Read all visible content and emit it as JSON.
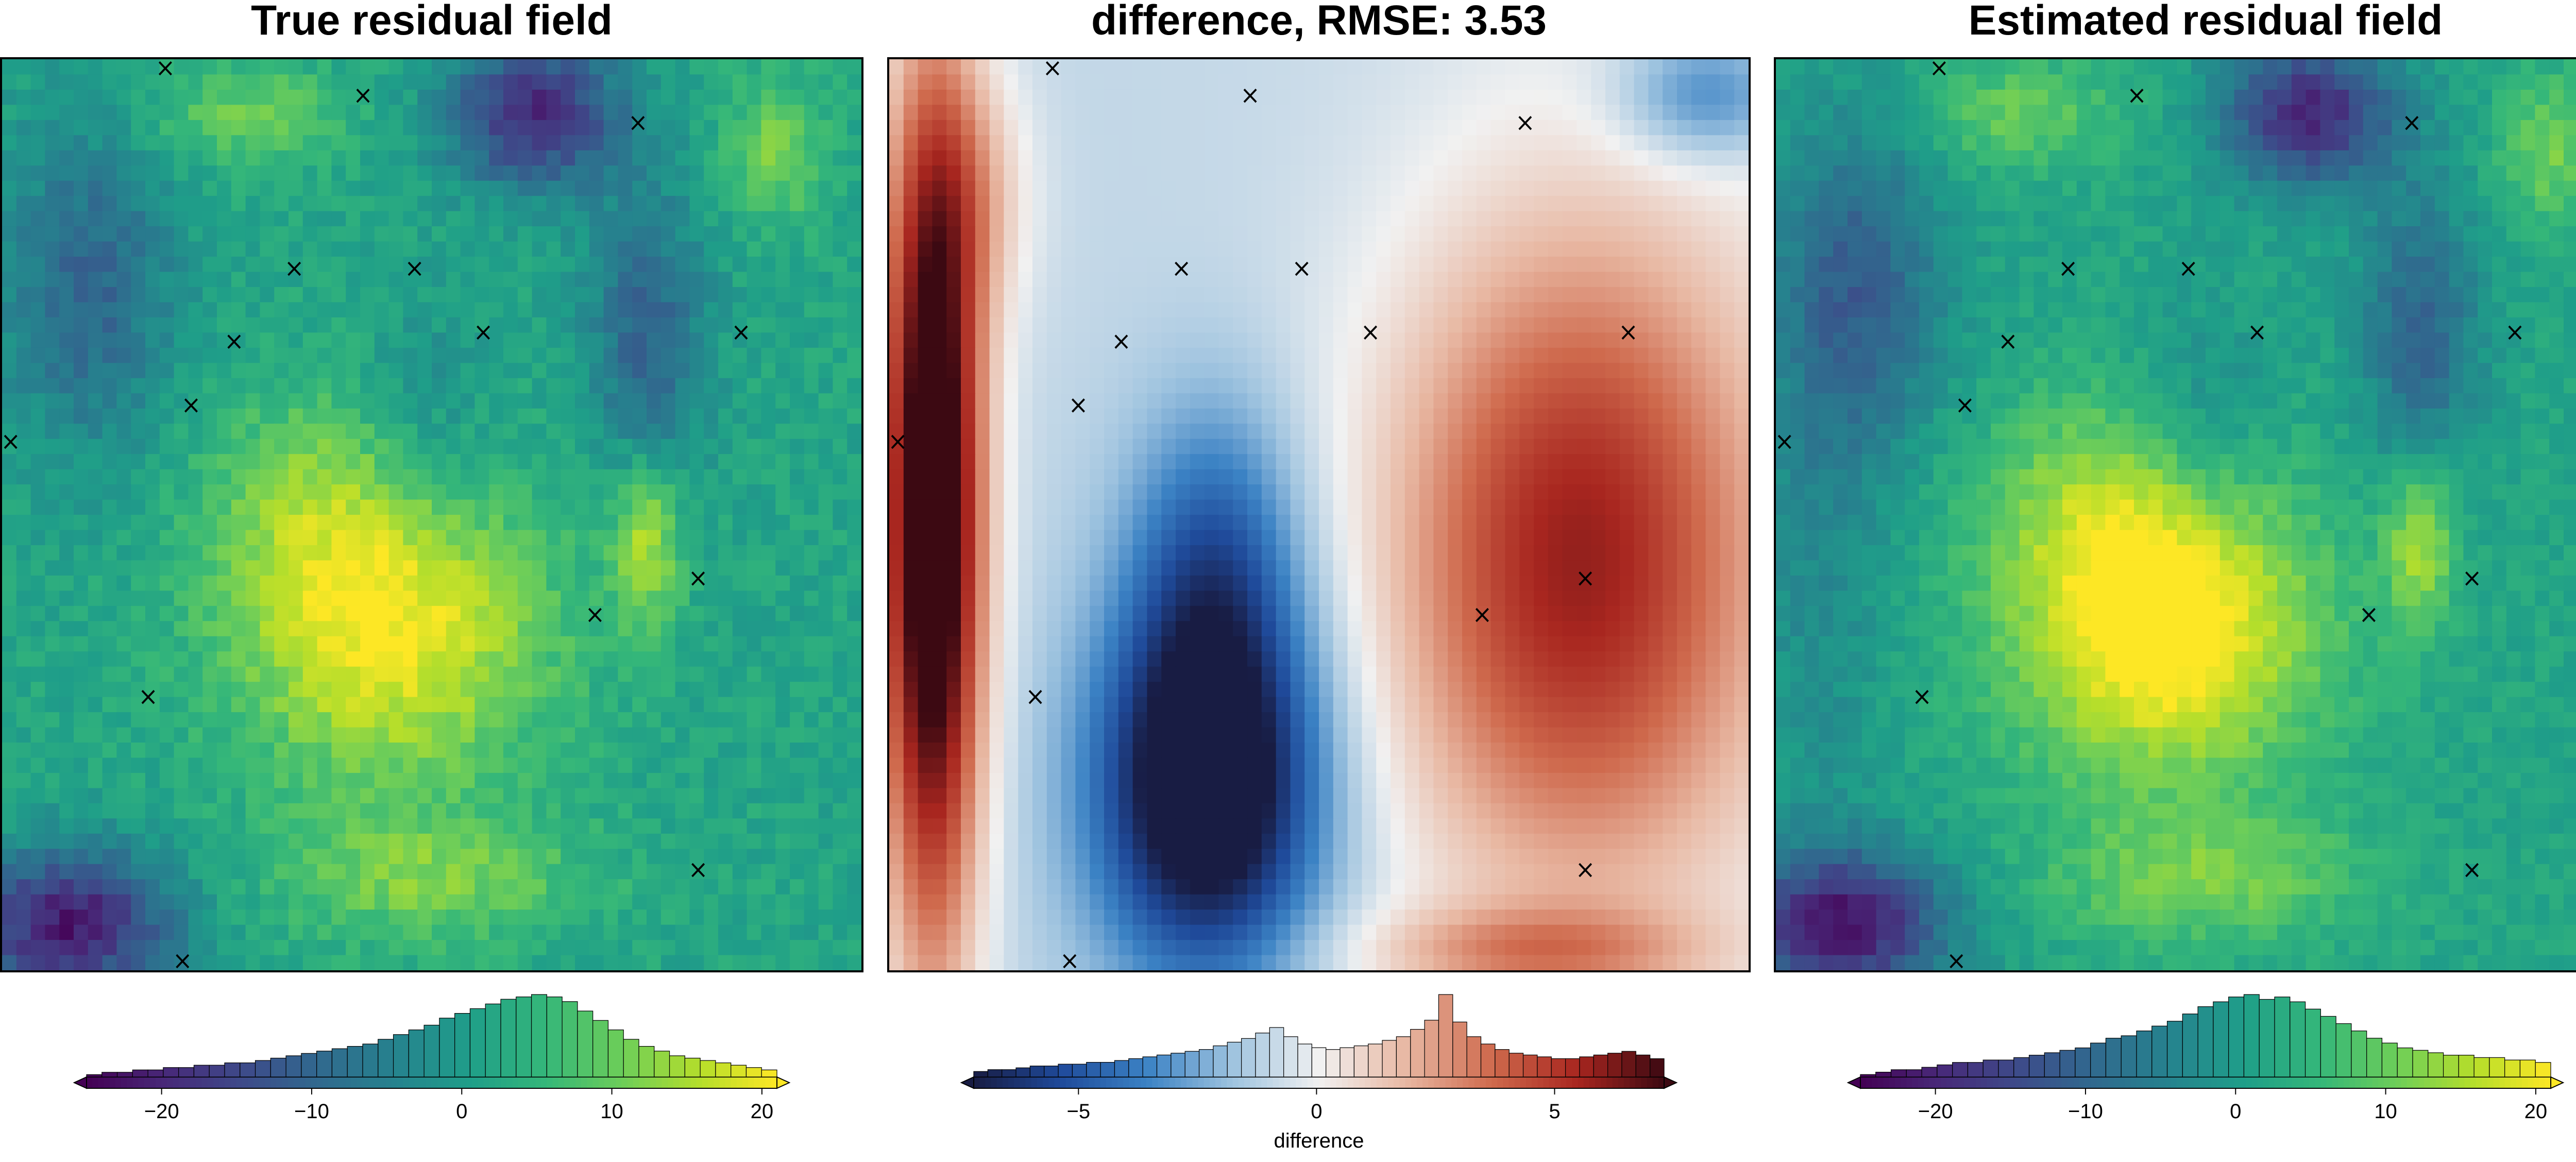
{
  "panels": [
    {
      "title": "True residual field",
      "colormap": "viridis",
      "colorbar": {
        "min": -25,
        "max": 21,
        "ticks": [
          -20,
          -10,
          0,
          10,
          20
        ],
        "tick_labels": [
          "−20",
          "−10",
          "0",
          "10",
          "20"
        ],
        "label": "",
        "hist": [
          1,
          2,
          2,
          3,
          3,
          4,
          4,
          5,
          5,
          6,
          6,
          7,
          8,
          9,
          10,
          11,
          12,
          13,
          14,
          16,
          18,
          20,
          22,
          25,
          27,
          29,
          31,
          33,
          34,
          35,
          34,
          32,
          28,
          24,
          20,
          16,
          13,
          11,
          9,
          8,
          7,
          6,
          5,
          4,
          3
        ]
      }
    },
    {
      "title": "difference, RMSE: 3.53",
      "colormap": "balance",
      "colorbar": {
        "min": -7.2,
        "max": 7.3,
        "ticks": [
          -5,
          0,
          5
        ],
        "tick_labels": [
          "−5",
          "0",
          "5"
        ],
        "label": "difference",
        "hist": [
          3,
          4,
          4,
          5,
          6,
          6,
          7,
          7,
          8,
          8,
          9,
          10,
          11,
          12,
          13,
          14,
          15,
          17,
          19,
          21,
          24,
          27,
          22,
          18,
          16,
          15,
          16,
          17,
          18,
          20,
          22,
          26,
          31,
          45,
          30,
          22,
          18,
          15,
          13,
          12,
          11,
          10,
          10,
          11,
          12,
          13,
          14,
          12,
          10
        ]
      }
    },
    {
      "title": "Estimated residual field",
      "colormap": "viridis",
      "colorbar": {
        "min": -25,
        "max": 21,
        "ticks": [
          -20,
          -10,
          0,
          10,
          20
        ],
        "tick_labels": [
          "−20",
          "−10",
          "0",
          "10",
          "20"
        ],
        "label": "",
        "hist": [
          1,
          2,
          3,
          3,
          4,
          5,
          6,
          6,
          7,
          7,
          8,
          9,
          10,
          11,
          12,
          14,
          16,
          17,
          19,
          21,
          23,
          26,
          29,
          31,
          33,
          34,
          32,
          33,
          31,
          28,
          25,
          22,
          19,
          16,
          14,
          12,
          11,
          10,
          9,
          9,
          8,
          8,
          7,
          7,
          6
        ]
      }
    }
  ],
  "chart_data": {
    "type": "heatmap",
    "panels": [
      "True residual field",
      "difference, RMSE: 3.53",
      "Estimated residual field"
    ],
    "rmse": 3.53,
    "colorbar_ranges": [
      [
        -25,
        21
      ],
      [
        -7.2,
        7.3
      ],
      [
        -25,
        21
      ]
    ],
    "grid": false,
    "sample_points": [
      [
        0.19,
        0.99
      ],
      [
        0.42,
        0.96
      ],
      [
        0.74,
        0.93
      ],
      [
        0.34,
        0.77
      ],
      [
        0.48,
        0.77
      ],
      [
        0.27,
        0.69
      ],
      [
        0.56,
        0.7
      ],
      [
        0.86,
        0.7
      ],
      [
        0.22,
        0.62
      ],
      [
        0.01,
        0.58
      ],
      [
        0.81,
        0.43
      ],
      [
        0.69,
        0.39
      ],
      [
        0.17,
        0.3
      ],
      [
        0.81,
        0.11
      ],
      [
        0.21,
        0.01
      ]
    ]
  }
}
